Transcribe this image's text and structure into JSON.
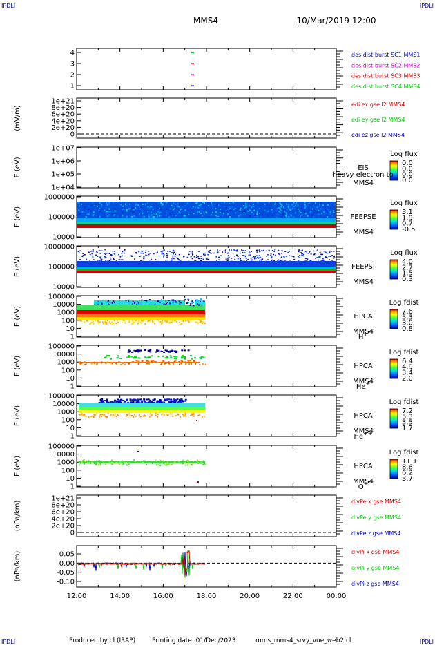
{
  "corner_label": "IPDLI",
  "header": {
    "spacecraft": "MMS4",
    "datetime": "10/Mar/2019 12:00"
  },
  "footer": {
    "produced": "Produced by cl (IRAP)",
    "printing": "Printing date: 01/Dec/2023",
    "script": "mms_mms4_srvy_vue_web2.cl"
  },
  "time_axis": {
    "ticks": [
      "12:00",
      "14:00",
      "16:00",
      "18:00",
      "20:00",
      "22:00",
      "00:00"
    ]
  },
  "colors": {
    "red": "#cc0000",
    "green": "#00cc00",
    "blue": "#0000cc",
    "magenta": "#cc00cc",
    "corner": "#0000aa"
  },
  "panels": [
    {
      "id": "burst",
      "ylabel": "",
      "yticks": [
        "4",
        "3",
        "2",
        "1"
      ],
      "legend": [
        {
          "text": "des dist burst SC1 MMS1",
          "color": "#0000cc"
        },
        {
          "text": "des dist burst SC2 MMS2",
          "color": "#cc00cc"
        },
        {
          "text": "des dist burst SC3 MMS3",
          "color": "#cc0000"
        },
        {
          "text": "des dist burst SC4 MMS4",
          "color": "#00cc00"
        }
      ]
    },
    {
      "id": "edi",
      "ylabel": "(mV/m)",
      "yticks": [
        "1e+21",
        "8e+20",
        "6e+20",
        "4e+20",
        "2e+20",
        "0"
      ],
      "legend": [
        {
          "text": "edi ex gse l2 MMS4",
          "color": "#cc0000"
        },
        {
          "text": "edi ey gse l2 MMS4",
          "color": "#00cc00"
        },
        {
          "text": "edi ez gse l2 MMS4",
          "color": "#0000cc"
        }
      ]
    },
    {
      "id": "eis",
      "ylabel": "E (eV)",
      "yticks": [
        "1e+07",
        "1e+06",
        "1e+05",
        "1e+04"
      ],
      "labels": [
        "EIS",
        "MMS4"
      ],
      "overlap_text": "heavy electron to",
      "cbar_title": "Log flux",
      "cbar_ticks": [
        "0.0",
        "0.0",
        "0.0",
        "0.0"
      ]
    },
    {
      "id": "feepse",
      "ylabel": "E (eV)",
      "yticks": [
        "1000000",
        "100000",
        "10000"
      ],
      "labels": [
        "FEEPSE",
        "MMS4"
      ],
      "cbar_title": "Log flux",
      "cbar_ticks": [
        "3.1",
        "1.9",
        "0.7",
        "-0.5"
      ]
    },
    {
      "id": "feepsi",
      "ylabel": "E (eV)",
      "yticks": [
        "1000000",
        "100000",
        "10000"
      ],
      "labels": [
        "FEEPSI",
        "MMS4"
      ],
      "cbar_title": "Log flux",
      "cbar_ticks": [
        "4.0",
        "2.7",
        "1.5",
        "0.3"
      ]
    },
    {
      "id": "hpca-h",
      "ylabel": "E (eV)",
      "yticks": [
        "100000",
        "10000",
        "1000",
        "100",
        "10",
        "1"
      ],
      "labels": [
        "HPCA",
        "MMS4"
      ],
      "species": "H",
      "species_sup": "+",
      "cbar_title": "Log fdist",
      "cbar_ticks": [
        "7.6",
        "5.3",
        "3.0",
        "0.8"
      ]
    },
    {
      "id": "hpca-he",
      "ylabel": "E (eV)",
      "yticks": [
        "100000",
        "10000",
        "1000",
        "100",
        "10",
        "1"
      ],
      "labels": [
        "HPCA",
        "MMS4"
      ],
      "species": "He",
      "species_sup": "+",
      "cbar_title": "Log fdist",
      "cbar_ticks": [
        "6.4",
        "4.9",
        "3.4",
        "2.0"
      ]
    },
    {
      "id": "hpca-he2",
      "ylabel": "E (eV)",
      "yticks": [
        "100000",
        "10000",
        "1000",
        "100",
        "10",
        "1"
      ],
      "labels": [
        "HPCA",
        "MMS4"
      ],
      "species": "He",
      "species_sup": "++",
      "cbar_title": "Log fdist",
      "cbar_ticks": [
        "7.2",
        "5.3",
        "3.5",
        "1.7"
      ]
    },
    {
      "id": "hpca-o",
      "ylabel": "E (eV)",
      "yticks": [
        "100000",
        "10000",
        "1000",
        "100",
        "10",
        "1"
      ],
      "labels": [
        "HPCA",
        "MMS4"
      ],
      "species": "O",
      "species_sup": "+",
      "cbar_title": "Log fdist",
      "cbar_ticks": [
        "11.1",
        "8.6",
        "6.2",
        "3.7"
      ]
    },
    {
      "id": "divpe",
      "ylabel": "(nPa/km)",
      "yticks": [
        "1e+21",
        "8e+20",
        "6e+20",
        "4e+20",
        "2e+20",
        "0"
      ],
      "legend": [
        {
          "text": "divPe x gse MMS4",
          "color": "#cc0000"
        },
        {
          "text": "divPe y gse MMS4",
          "color": "#00cc00"
        },
        {
          "text": "divPe z gse MMS4",
          "color": "#0000cc"
        }
      ]
    },
    {
      "id": "divpi",
      "ylabel": "(nPa/km)",
      "yticks": [
        "0.05",
        "0.00",
        "-0.05",
        "-0.10"
      ],
      "legend": [
        {
          "text": "divPi x gse MMS4",
          "color": "#cc0000"
        },
        {
          "text": "divPi y gse MMS4",
          "color": "#00cc00"
        },
        {
          "text": "divPi z gse MMS4",
          "color": "#0000cc"
        }
      ]
    }
  ],
  "chart_data": {
    "type": "heatmap",
    "title": "MMS4",
    "x_axis": {
      "start": "12:00",
      "end": "00:00",
      "ticks": [
        "12:00",
        "14:00",
        "16:00",
        "18:00",
        "20:00",
        "22:00",
        "00:00"
      ]
    },
    "data_coverage_end": "18:00",
    "series": [
      {
        "panel": "burst",
        "type": "scatter",
        "points": [
          {
            "time": "17:10",
            "value": 4,
            "name": "des dist burst SC4 MMS4"
          },
          {
            "time": "17:10",
            "value": 3,
            "name": "des dist burst SC3 MMS3"
          },
          {
            "time": "17:10",
            "value": 2,
            "name": "des dist burst SC2 MMS2"
          },
          {
            "time": "17:10",
            "value": 1,
            "name": "des dist burst SC1 MMS1"
          }
        ]
      },
      {
        "panel": "divpi",
        "type": "line",
        "ylim": [
          -0.12,
          0.08
        ],
        "note_range": [
          -0.1,
          0.05
        ]
      }
    ]
  }
}
